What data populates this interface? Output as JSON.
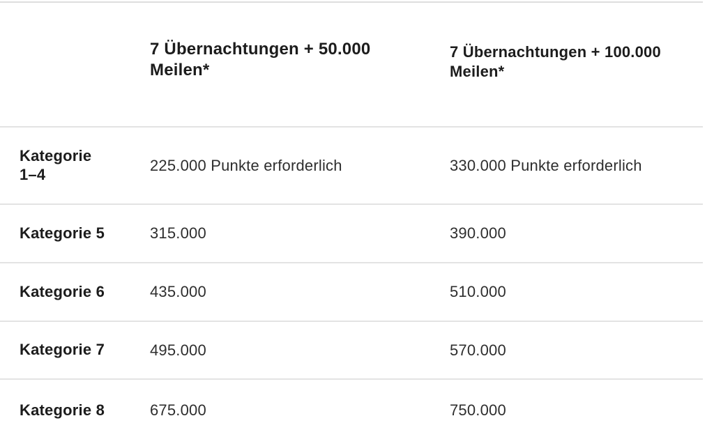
{
  "colors": {
    "background": "#ffffff",
    "text_strong": "#1c1c1c",
    "text_body": "#2e2e2e",
    "separator": "#e3e3e3"
  },
  "chart_data": {
    "type": "table",
    "title": "",
    "columns": [
      "",
      "7 Übernachtungen + 50.000 Meilen*",
      "7 Übernachtungen + 100.000 Meilen*"
    ],
    "rows": [
      [
        "Kategorie 1–4",
        "225.000 Punkte erforderlich",
        "330.000 Punkte erforderlich"
      ],
      [
        "Kategorie 5",
        "315.000",
        "390.000"
      ],
      [
        "Kategorie 6",
        "435.000",
        "510.000"
      ],
      [
        "Kategorie 7",
        "495.000",
        "570.000"
      ],
      [
        "Kategorie 8",
        "675.000",
        "750.000"
      ]
    ]
  }
}
